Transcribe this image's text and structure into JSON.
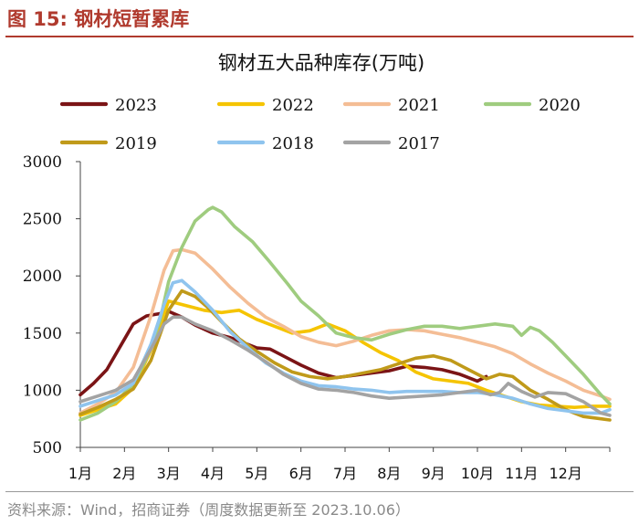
{
  "figure": {
    "label": "图 15:  钢材短暂累库"
  },
  "footer": {
    "source": "资料来源：Wind，招商证券（周度数据更新至 2023.10.06）"
  },
  "chart_data": {
    "type": "line",
    "title": "钢材五大品种库存(万吨)",
    "xlabel": "",
    "ylabel": "",
    "ylim": [
      500,
      3000
    ],
    "yticks": [
      500,
      1000,
      1500,
      2000,
      2500,
      3000
    ],
    "categories": [
      "1月",
      "2月",
      "3月",
      "4月",
      "5月",
      "6月",
      "7月",
      "8月",
      "9月",
      "10月",
      "11月",
      "12月"
    ],
    "legend_position": "top",
    "series": [
      {
        "name": "2023",
        "color": "#7b1416",
        "x": [
          1.0,
          1.3,
          1.6,
          1.9,
          2.2,
          2.5,
          2.8,
          3.0,
          3.3,
          3.6,
          4.0,
          4.4,
          4.8,
          5.0,
          5.3,
          5.6,
          6.0,
          6.4,
          6.8,
          7.2,
          7.6,
          8.0,
          8.4,
          8.8,
          9.2,
          9.6,
          10.0,
          10.2
        ],
        "values": [
          960,
          1060,
          1180,
          1380,
          1580,
          1650,
          1670,
          1690,
          1640,
          1570,
          1500,
          1460,
          1400,
          1370,
          1360,
          1300,
          1220,
          1150,
          1110,
          1130,
          1150,
          1170,
          1210,
          1200,
          1180,
          1140,
          1080,
          1120
        ]
      },
      {
        "name": "2022",
        "color": "#f5c400",
        "x": [
          1.0,
          1.4,
          1.8,
          2.2,
          2.6,
          3.0,
          3.4,
          3.8,
          4.2,
          4.6,
          5.0,
          5.4,
          5.8,
          6.2,
          6.6,
          7.0,
          7.4,
          7.8,
          8.2,
          8.6,
          9.0,
          9.4,
          9.8,
          10.2,
          10.6,
          11.0,
          11.4,
          11.8,
          12.2,
          12.6,
          13.0
        ],
        "values": [
          780,
          830,
          880,
          1020,
          1350,
          1780,
          1740,
          1700,
          1680,
          1700,
          1620,
          1560,
          1500,
          1520,
          1580,
          1520,
          1420,
          1330,
          1260,
          1160,
          1100,
          1080,
          1060,
          1000,
          950,
          900,
          870,
          860,
          850,
          860,
          860
        ]
      },
      {
        "name": "2021",
        "color": "#f4bd95",
        "x": [
          1.0,
          1.4,
          1.8,
          2.2,
          2.6,
          2.9,
          3.1,
          3.3,
          3.6,
          4.0,
          4.4,
          4.8,
          5.2,
          5.6,
          6.0,
          6.4,
          6.8,
          7.2,
          7.6,
          8.0,
          8.4,
          8.8,
          9.2,
          9.6,
          10.0,
          10.4,
          10.8,
          11.2,
          11.6,
          12.0,
          12.4,
          12.8,
          13.0
        ],
        "values": [
          800,
          880,
          980,
          1200,
          1650,
          2050,
          2220,
          2230,
          2200,
          2060,
          1900,
          1760,
          1640,
          1560,
          1470,
          1420,
          1390,
          1430,
          1480,
          1520,
          1530,
          1520,
          1490,
          1460,
          1420,
          1380,
          1320,
          1230,
          1150,
          1080,
          1000,
          950,
          920
        ]
      },
      {
        "name": "2020",
        "color": "#9fcc7f",
        "x": [
          1.0,
          1.4,
          1.8,
          2.2,
          2.5,
          2.8,
          3.0,
          3.3,
          3.6,
          3.9,
          4.0,
          4.2,
          4.5,
          4.9,
          5.3,
          5.7,
          6.0,
          6.4,
          6.8,
          7.2,
          7.6,
          8.0,
          8.4,
          8.8,
          9.2,
          9.6,
          10.0,
          10.4,
          10.8,
          11.0,
          11.2,
          11.4,
          11.7,
          12.0,
          12.4,
          12.8,
          13.0
        ],
        "values": [
          740,
          800,
          900,
          1050,
          1280,
          1600,
          1950,
          2250,
          2480,
          2580,
          2600,
          2560,
          2430,
          2300,
          2120,
          1930,
          1780,
          1650,
          1500,
          1460,
          1440,
          1490,
          1530,
          1560,
          1560,
          1540,
          1560,
          1580,
          1560,
          1480,
          1550,
          1520,
          1420,
          1300,
          1140,
          960,
          880
        ]
      },
      {
        "name": "2019",
        "color": "#c09a1a",
        "x": [
          1.0,
          1.4,
          1.8,
          2.2,
          2.6,
          3.0,
          3.3,
          3.6,
          3.9,
          4.2,
          4.6,
          5.0,
          5.4,
          5.8,
          6.2,
          6.6,
          7.0,
          7.4,
          7.8,
          8.2,
          8.6,
          9.0,
          9.4,
          9.8,
          10.2,
          10.5,
          10.8,
          11.2,
          11.6,
          12.0,
          12.4,
          12.8,
          13.0
        ],
        "values": [
          790,
          850,
          920,
          1010,
          1260,
          1700,
          1870,
          1820,
          1720,
          1600,
          1450,
          1340,
          1240,
          1160,
          1120,
          1100,
          1120,
          1150,
          1180,
          1230,
          1280,
          1300,
          1260,
          1180,
          1100,
          1140,
          1120,
          1000,
          920,
          830,
          770,
          750,
          740
        ]
      },
      {
        "name": "2018",
        "color": "#8fc4ee",
        "x": [
          1.0,
          1.4,
          1.8,
          2.2,
          2.6,
          2.9,
          3.1,
          3.3,
          3.6,
          4.0,
          4.4,
          4.8,
          5.2,
          5.6,
          6.0,
          6.4,
          6.8,
          7.2,
          7.6,
          8.0,
          8.4,
          8.8,
          9.2,
          9.6,
          10.0,
          10.4,
          10.8,
          11.2,
          11.6,
          12.0,
          12.4,
          12.8,
          13.0
        ],
        "values": [
          860,
          910,
          960,
          1060,
          1400,
          1750,
          1940,
          1960,
          1860,
          1700,
          1510,
          1370,
          1240,
          1150,
          1080,
          1040,
          1030,
          1010,
          1000,
          980,
          990,
          990,
          990,
          980,
          980,
          960,
          930,
          880,
          840,
          820,
          800,
          800,
          830
        ]
      },
      {
        "name": "2017",
        "color": "#a3a3a3",
        "x": [
          1.0,
          1.4,
          1.8,
          2.2,
          2.6,
          2.9,
          3.1,
          3.3,
          3.6,
          4.0,
          4.4,
          4.8,
          5.2,
          5.6,
          6.0,
          6.4,
          6.8,
          7.2,
          7.6,
          8.0,
          8.4,
          8.8,
          9.2,
          9.6,
          10.0,
          10.3,
          10.5,
          10.7,
          11.0,
          11.3,
          11.6,
          12.0,
          12.4,
          12.8,
          13.0
        ],
        "values": [
          900,
          950,
          1000,
          1090,
          1360,
          1580,
          1640,
          1640,
          1580,
          1520,
          1440,
          1350,
          1250,
          1140,
          1060,
          1010,
          1000,
          980,
          950,
          930,
          940,
          950,
          960,
          980,
          1000,
          960,
          980,
          1060,
          990,
          940,
          980,
          970,
          900,
          800,
          780
        ]
      }
    ]
  }
}
